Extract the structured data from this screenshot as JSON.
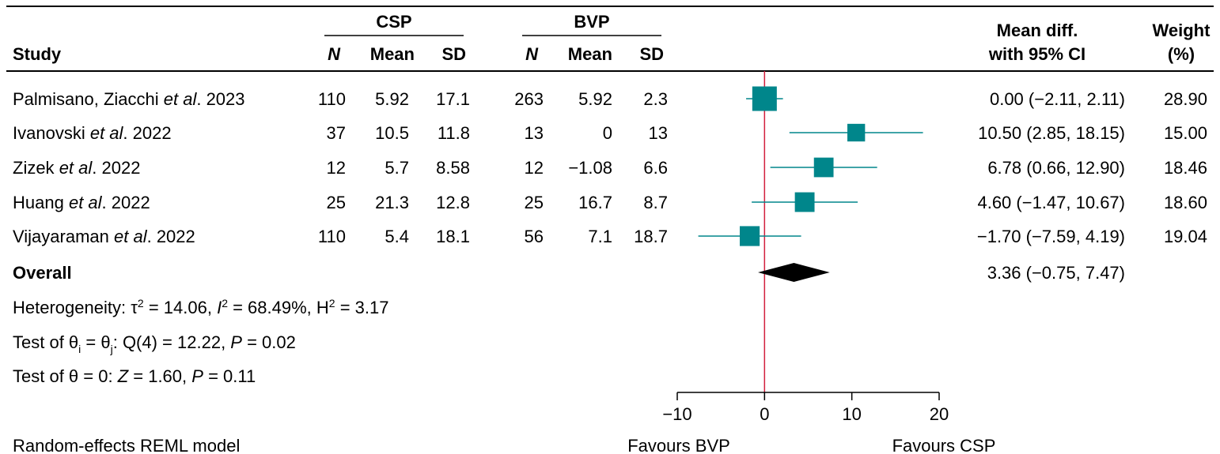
{
  "colors": {
    "marker": "#00868B",
    "ci_line": "#00868B",
    "null_line": "#D21F3C",
    "diamond": "#000000",
    "text": "#000000"
  },
  "header": {
    "study": "Study",
    "group1": "CSP",
    "group2": "BVP",
    "n": "N",
    "mean": "Mean",
    "sd": "SD",
    "effect_line1": "Mean diff.",
    "effect_line2": "with 95% CI",
    "weight_line1": "Weight",
    "weight_line2": "(%)"
  },
  "chart_data": {
    "type": "forest",
    "xlim": [
      -10,
      20
    ],
    "xticks": [
      -10,
      0,
      10,
      20
    ],
    "xtick_labels": [
      "−10",
      "0",
      "10",
      "20"
    ],
    "null_value": 0,
    "left_label": "Favours BVP",
    "right_label": "Favours CSP",
    "studies": [
      {
        "name_parts": [
          {
            "t": "Palmisano, Ziacchi ",
            "i": false
          },
          {
            "t": "et al",
            "i": true
          },
          {
            "t": ". 2023",
            "i": false
          }
        ],
        "csp_n": "110",
        "csp_mean": "5.92",
        "csp_sd": "17.1",
        "bvp_n": "263",
        "bvp_mean": "5.92",
        "bvp_sd": "2.3",
        "md": 0.0,
        "lo": -2.11,
        "hi": 2.11,
        "ci_text": "0.00 (−2.11, 2.11)",
        "weight": 28.9,
        "weight_text": "28.90"
      },
      {
        "name_parts": [
          {
            "t": "Ivanovski ",
            "i": false
          },
          {
            "t": "et al",
            "i": true
          },
          {
            "t": ". 2022",
            "i": false
          }
        ],
        "csp_n": "37",
        "csp_mean": "10.5",
        "csp_sd": "11.8",
        "bvp_n": "13",
        "bvp_mean": "0",
        "bvp_sd": "13",
        "md": 10.5,
        "lo": 2.85,
        "hi": 18.15,
        "ci_text": "10.50 (2.85, 18.15)",
        "weight": 15.0,
        "weight_text": "15.00"
      },
      {
        "name_parts": [
          {
            "t": "Zizek ",
            "i": false
          },
          {
            "t": "et al",
            "i": true
          },
          {
            "t": ". 2022",
            "i": false
          }
        ],
        "csp_n": "12",
        "csp_mean": "5.7",
        "csp_sd": "8.58",
        "bvp_n": "12",
        "bvp_mean": "−1.08",
        "bvp_sd": "6.6",
        "md": 6.78,
        "lo": 0.66,
        "hi": 12.9,
        "ci_text": "6.78 (0.66, 12.90)",
        "weight": 18.46,
        "weight_text": "18.46"
      },
      {
        "name_parts": [
          {
            "t": "Huang ",
            "i": false
          },
          {
            "t": "et al",
            "i": true
          },
          {
            "t": ". 2022",
            "i": false
          }
        ],
        "csp_n": "25",
        "csp_mean": "21.3",
        "csp_sd": "12.8",
        "bvp_n": "25",
        "bvp_mean": "16.7",
        "bvp_sd": "8.7",
        "md": 4.6,
        "lo": -1.47,
        "hi": 10.67,
        "ci_text": "4.60 (−1.47, 10.67)",
        "weight": 18.6,
        "weight_text": "18.60"
      },
      {
        "name_parts": [
          {
            "t": "Vijayaraman ",
            "i": false
          },
          {
            "t": "et al",
            "i": true
          },
          {
            "t": ". 2022",
            "i": false
          }
        ],
        "csp_n": "110",
        "csp_mean": "5.4",
        "csp_sd": "18.1",
        "bvp_n": "56",
        "bvp_mean": "7.1",
        "bvp_sd": "18.7",
        "md": -1.7,
        "lo": -7.59,
        "hi": 4.19,
        "ci_text": "−1.70 (−7.59, 4.19)",
        "weight": 19.04,
        "weight_text": "19.04"
      }
    ],
    "overall": {
      "label": "Overall",
      "md": 3.36,
      "lo": -0.75,
      "hi": 7.47,
      "ci_text": "3.36 (−0.75, 7.47)"
    }
  },
  "footnotes": {
    "heterogeneity": [
      {
        "t": "Heterogeneity: ",
        "s": "n"
      },
      {
        "t": "τ",
        "s": "n"
      },
      {
        "t": "2",
        "s": "sup"
      },
      {
        "t": " = 14.06, ",
        "s": "n"
      },
      {
        "t": "I",
        "s": "i"
      },
      {
        "t": "2",
        "s": "sup"
      },
      {
        "t": " = 68.49%, H",
        "s": "n"
      },
      {
        "t": "2",
        "s": "sup"
      },
      {
        "t": " = 3.17",
        "s": "n"
      }
    ],
    "test_equal": [
      {
        "t": "Test of θ",
        "s": "n"
      },
      {
        "t": "i",
        "s": "sub"
      },
      {
        "t": " = θ",
        "s": "n"
      },
      {
        "t": "j",
        "s": "sub"
      },
      {
        "t": ": Q(4) = 12.22, ",
        "s": "n"
      },
      {
        "t": "P",
        "s": "i"
      },
      {
        "t": " = 0.02",
        "s": "n"
      }
    ],
    "test_zero": [
      {
        "t": "Test of θ = 0: ",
        "s": "n"
      },
      {
        "t": "Z",
        "s": "i"
      },
      {
        "t": " = 1.60, ",
        "s": "n"
      },
      {
        "t": "P",
        "s": "i"
      },
      {
        "t": " = 0.11",
        "s": "n"
      }
    ],
    "model": "Random-effects REML model"
  }
}
